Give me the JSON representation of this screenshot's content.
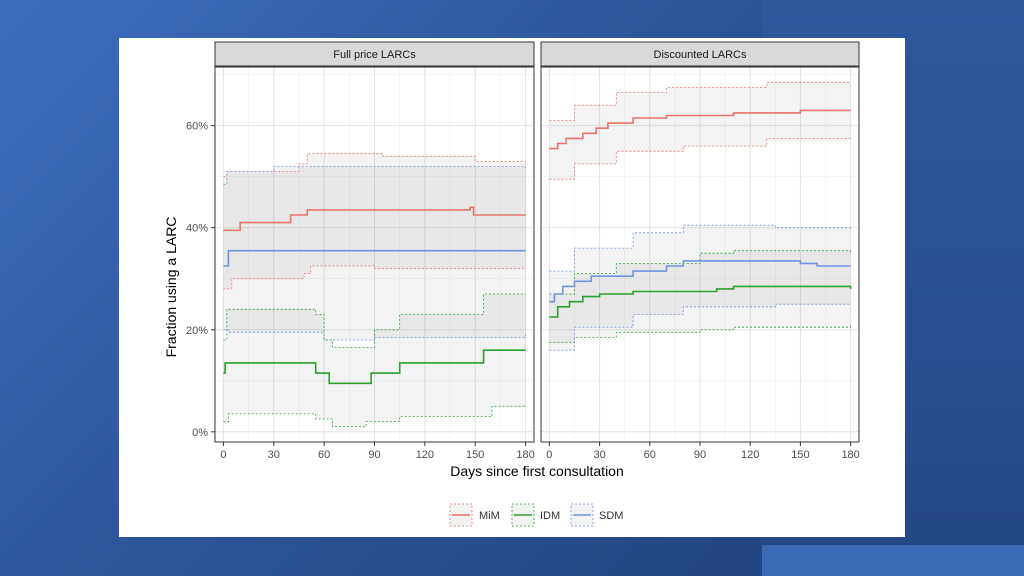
{
  "chart_data": {
    "type": "line",
    "xlabel": "Days since first consultation",
    "ylabel": "Fraction using a LARC",
    "xlim": [
      -5,
      185
    ],
    "ylim": [
      -2,
      71.5
    ],
    "x_ticks": [
      0,
      30,
      60,
      90,
      120,
      150,
      180
    ],
    "y_ticks": [
      0,
      20,
      40,
      60
    ],
    "y_tick_labels": [
      "0%",
      "20%",
      "40%",
      "60%"
    ],
    "grid": true,
    "legend_position": "bottom",
    "legend": [
      {
        "name": "MiM",
        "color": "#e8736b"
      },
      {
        "name": "IDM",
        "color": "#2ca02c"
      },
      {
        "name": "SDM",
        "color": "#6f94e0"
      }
    ],
    "panels": [
      {
        "title": "Full price LARCs",
        "series": [
          {
            "name": "MiM",
            "estimate": [
              [
                0,
                39.5
              ],
              [
                10,
                41
              ],
              [
                40,
                42.5
              ],
              [
                50,
                43.5
              ],
              [
                147,
                44
              ],
              [
                149,
                42.5
              ],
              [
                180,
                42.5
              ]
            ],
            "upper": [
              [
                0,
                50
              ],
              [
                2,
                51
              ],
              [
                45,
                52.5
              ],
              [
                50,
                54.5
              ],
              [
                95,
                54
              ],
              [
                150,
                53
              ],
              [
                180,
                53
              ]
            ],
            "lower": [
              [
                0,
                28
              ],
              [
                5,
                30
              ],
              [
                48,
                31
              ],
              [
                52,
                32.5
              ],
              [
                90,
                32
              ],
              [
                180,
                32
              ]
            ]
          },
          {
            "name": "IDM",
            "estimate": [
              [
                0,
                11.5
              ],
              [
                1,
                13.5
              ],
              [
                55,
                11.5
              ],
              [
                63,
                9.5
              ],
              [
                88,
                11.5
              ],
              [
                105,
                13.5
              ],
              [
                155,
                16
              ],
              [
                180,
                16
              ]
            ],
            "upper": [
              [
                0,
                18
              ],
              [
                2,
                24
              ],
              [
                55,
                23
              ],
              [
                60,
                18
              ],
              [
                65,
                16.5
              ],
              [
                90,
                20
              ],
              [
                105,
                23
              ],
              [
                155,
                27
              ],
              [
                180,
                27
              ]
            ],
            "lower": [
              [
                0,
                2
              ],
              [
                3,
                3.5
              ],
              [
                55,
                2.5
              ],
              [
                65,
                1
              ],
              [
                85,
                2
              ],
              [
                105,
                3
              ],
              [
                160,
                5
              ],
              [
                180,
                5
              ]
            ]
          },
          {
            "name": "SDM",
            "estimate": [
              [
                0,
                32.5
              ],
              [
                3,
                35.5
              ],
              [
                180,
                35.5
              ]
            ],
            "upper": [
              [
                0,
                48.5
              ],
              [
                2,
                51
              ],
              [
                30,
                52
              ],
              [
                180,
                51.5
              ]
            ],
            "lower": [
              [
                0,
                20
              ],
              [
                3,
                19.5
              ],
              [
                60,
                18
              ],
              [
                90,
                18.5
              ],
              [
                180,
                19
              ]
            ]
          }
        ]
      },
      {
        "title": "Discounted LARCs",
        "series": [
          {
            "name": "MiM",
            "estimate": [
              [
                0,
                55.5
              ],
              [
                5,
                56.5
              ],
              [
                10,
                57.5
              ],
              [
                20,
                58.5
              ],
              [
                28,
                59.5
              ],
              [
                35,
                60.5
              ],
              [
                50,
                61.5
              ],
              [
                70,
                62
              ],
              [
                110,
                62.5
              ],
              [
                140,
                62.5
              ],
              [
                150,
                63
              ],
              [
                180,
                63
              ]
            ],
            "upper": [
              [
                0,
                61
              ],
              [
                15,
                64
              ],
              [
                40,
                66.5
              ],
              [
                70,
                67.5
              ],
              [
                130,
                68.5
              ],
              [
                180,
                68.5
              ]
            ],
            "lower": [
              [
                0,
                49.5
              ],
              [
                15,
                52.5
              ],
              [
                40,
                55
              ],
              [
                80,
                56
              ],
              [
                130,
                57.5
              ],
              [
                180,
                57.5
              ]
            ]
          },
          {
            "name": "IDM",
            "estimate": [
              [
                0,
                22.5
              ],
              [
                5,
                24.5
              ],
              [
                12,
                25.5
              ],
              [
                20,
                26.5
              ],
              [
                30,
                27
              ],
              [
                50,
                27.5
              ],
              [
                100,
                28
              ],
              [
                110,
                28.5
              ],
              [
                130,
                28.5
              ],
              [
                180,
                28
              ]
            ],
            "upper": [
              [
                0,
                27
              ],
              [
                15,
                31
              ],
              [
                40,
                33
              ],
              [
                90,
                35
              ],
              [
                110,
                35.5
              ],
              [
                180,
                35
              ]
            ],
            "lower": [
              [
                0,
                17.5
              ],
              [
                15,
                18.5
              ],
              [
                40,
                19.5
              ],
              [
                90,
                20
              ],
              [
                110,
                20.5
              ],
              [
                180,
                21
              ]
            ]
          },
          {
            "name": "SDM",
            "estimate": [
              [
                0,
                25.5
              ],
              [
                3,
                27
              ],
              [
                8,
                28.5
              ],
              [
                15,
                29.5
              ],
              [
                25,
                30.5
              ],
              [
                50,
                31.5
              ],
              [
                70,
                32.5
              ],
              [
                80,
                33.5
              ],
              [
                135,
                33.5
              ],
              [
                150,
                33
              ],
              [
                160,
                32.5
              ],
              [
                180,
                32.5
              ]
            ],
            "upper": [
              [
                0,
                31.5
              ],
              [
                15,
                36
              ],
              [
                50,
                39
              ],
              [
                80,
                40.5
              ],
              [
                135,
                40
              ],
              [
                180,
                39.5
              ]
            ],
            "lower": [
              [
                0,
                16
              ],
              [
                15,
                20.5
              ],
              [
                50,
                23
              ],
              [
                80,
                24.5
              ],
              [
                135,
                25
              ],
              [
                180,
                25
              ]
            ]
          }
        ]
      }
    ]
  }
}
